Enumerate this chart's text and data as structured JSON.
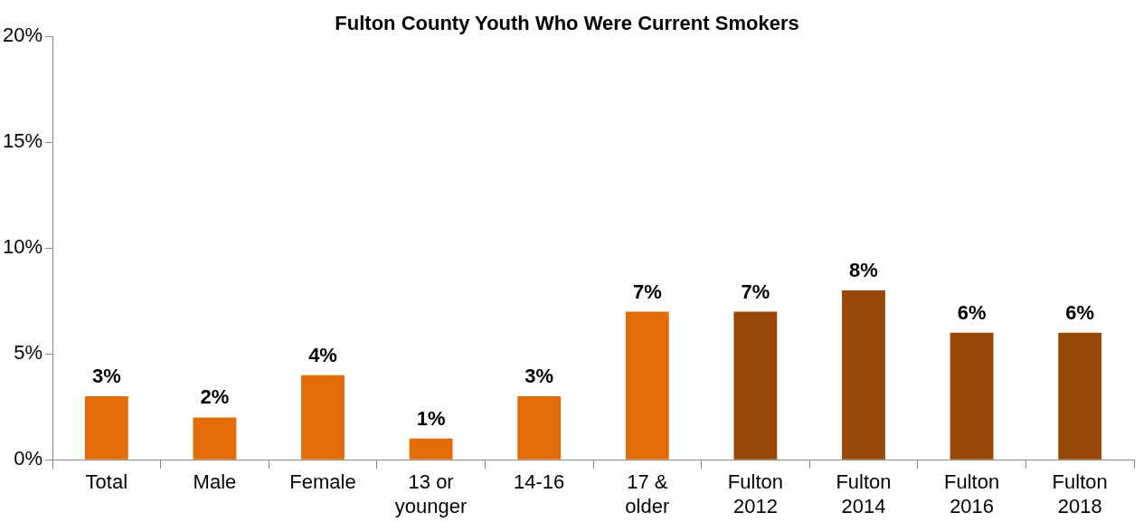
{
  "chart_data": {
    "type": "bar",
    "title": "Fulton County Youth Who Were Current Smokers",
    "categories": [
      "Total",
      "Male",
      "Female",
      "13 or younger",
      "14-16",
      "17 & older",
      "Fulton 2012",
      "Fulton 2014",
      "Fulton 2016",
      "Fulton 2018"
    ],
    "values": [
      3,
      2,
      4,
      1,
      3,
      7,
      7,
      8,
      6,
      6
    ],
    "colors": [
      "#e36c0a",
      "#e36c0a",
      "#e36c0a",
      "#e36c0a",
      "#e36c0a",
      "#e36c0a",
      "#974706",
      "#974706",
      "#974706",
      "#974706"
    ],
    "value_labels": [
      "3%",
      "2%",
      "4%",
      "1%",
      "3%",
      "7%",
      "7%",
      "8%",
      "6%",
      "6%"
    ],
    "ylim": [
      0,
      20
    ],
    "yticks": [
      {
        "value": 0,
        "label": "0%"
      },
      {
        "value": 5,
        "label": "5%"
      },
      {
        "value": 10,
        "label": "10%"
      },
      {
        "value": 15,
        "label": "15%"
      },
      {
        "value": 20,
        "label": "20%"
      }
    ],
    "grid": false,
    "legend": false
  }
}
